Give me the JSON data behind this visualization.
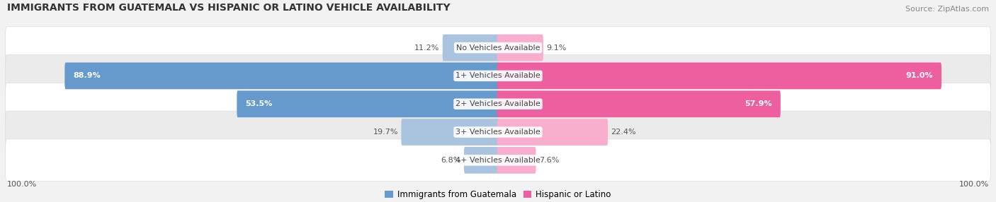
{
  "title": "IMMIGRANTS FROM GUATEMALA VS HISPANIC OR LATINO VEHICLE AVAILABILITY",
  "source": "Source: ZipAtlas.com",
  "categories": [
    "No Vehicles Available",
    "1+ Vehicles Available",
    "2+ Vehicles Available",
    "3+ Vehicles Available",
    "4+ Vehicles Available"
  ],
  "left_values": [
    11.2,
    88.9,
    53.5,
    19.7,
    6.8
  ],
  "right_values": [
    9.1,
    91.0,
    57.9,
    22.4,
    7.6
  ],
  "left_color_strong": "#6699cc",
  "left_color_light": "#aac4e0",
  "right_color_strong": "#ee5fa0",
  "right_color_light": "#f9aece",
  "left_label": "Immigrants from Guatemala",
  "right_label": "Hispanic or Latino",
  "max_val": 100.0,
  "bg_color": "#f2f2f2",
  "row_colors": [
    "#ffffff",
    "#ebebeb"
  ],
  "title_fontsize": 10,
  "source_fontsize": 8,
  "value_fontsize": 8,
  "cat_fontsize": 8
}
